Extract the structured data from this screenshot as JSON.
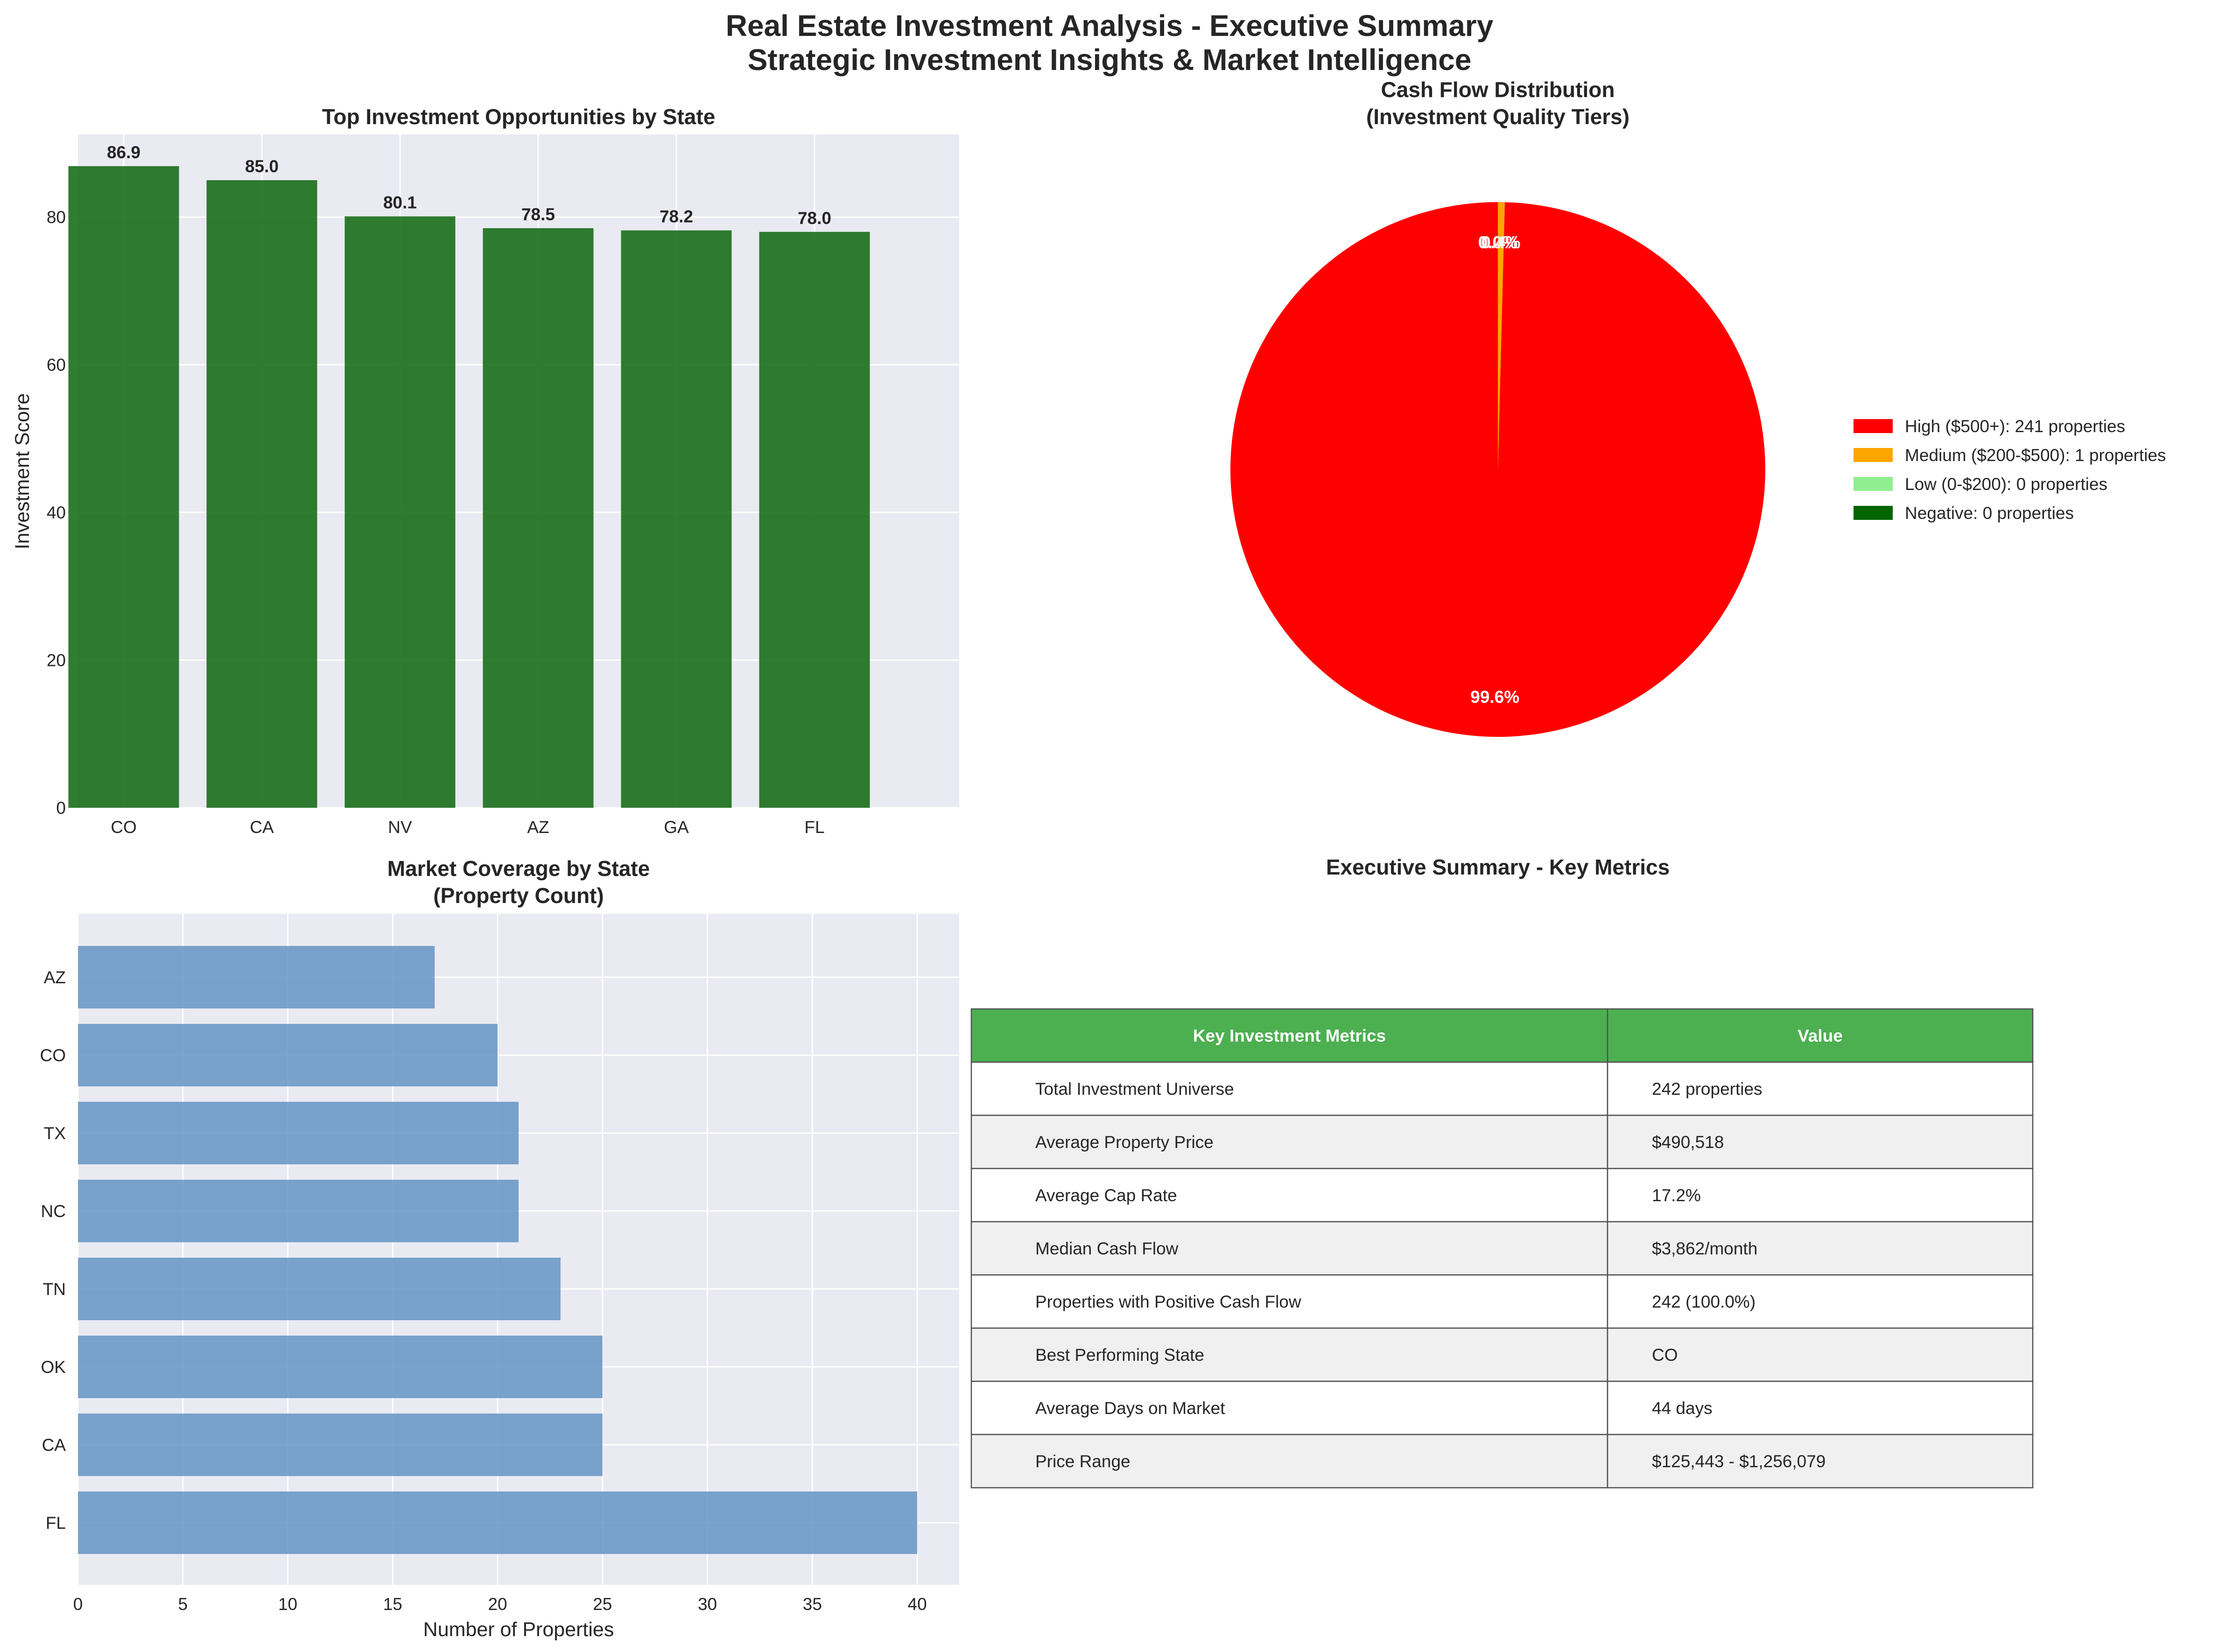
{
  "suptitle_line1": "Real Estate Investment Analysis - Executive Summary",
  "suptitle_line2": "Strategic Investment Insights & Market Intelligence",
  "chart_data": [
    {
      "type": "bar",
      "title": "Top Investment Opportunities by State",
      "xlabel": "",
      "ylabel": "Investment Score",
      "categories": [
        "CO",
        "CA",
        "NV",
        "AZ",
        "GA",
        "FL"
      ],
      "values": [
        86.9,
        85.0,
        80.1,
        78.5,
        78.2,
        78.0
      ],
      "value_labels": [
        "86.9",
        "85.0",
        "80.1",
        "78.5",
        "78.2",
        "78.0"
      ],
      "ylim": [
        0,
        91.2
      ],
      "yticks": [
        0,
        20,
        40,
        60,
        80
      ],
      "color": "#1a6e1a",
      "grid": true
    },
    {
      "type": "pie",
      "title_line1": "Cash Flow Distribution",
      "title_line2": "(Investment Quality Tiers)",
      "slices": [
        {
          "label": "High ($500+): 241 properties",
          "value": 241,
          "pct_label": "99.6%",
          "color": "#ff0000"
        },
        {
          "label": "Medium ($200-$500): 1 properties",
          "value": 1,
          "pct_label": "0.4%",
          "color": "#ffa500"
        },
        {
          "label": "Low (0-$200): 0 properties",
          "value": 0,
          "pct_label": "0.0%",
          "color": "#90ee90"
        },
        {
          "label": "Negative: 0 properties",
          "value": 0,
          "pct_label": "0.0%",
          "color": "#006400"
        }
      ],
      "legend": "right"
    },
    {
      "type": "bar",
      "orientation": "horizontal",
      "title_line1": "Market Coverage by State",
      "title_line2": "(Property Count)",
      "xlabel": "Number of Properties",
      "ylabel": "",
      "categories": [
        "FL",
        "CA",
        "OK",
        "TN",
        "NC",
        "TX",
        "CO",
        "AZ"
      ],
      "values": [
        40,
        25,
        25,
        23,
        21,
        21,
        20,
        17
      ],
      "xlim": [
        0,
        42
      ],
      "xticks": [
        0,
        5,
        10,
        15,
        20,
        25,
        30,
        35,
        40
      ],
      "color": "#5b8fc0",
      "grid": true
    },
    {
      "type": "table",
      "title": "Executive Summary - Key Metrics",
      "header": [
        "Key Investment Metrics",
        "Value"
      ],
      "header_color": "#4caf50",
      "rows": [
        [
          "Total Investment Universe",
          "242 properties"
        ],
        [
          "Average Property Price",
          "$490,518"
        ],
        [
          "Average Cap Rate",
          "17.2%"
        ],
        [
          "Median Cash Flow",
          "$3,862/month"
        ],
        [
          "Properties with Positive Cash Flow",
          "242 (100.0%)"
        ],
        [
          "Best Performing State",
          "CO"
        ],
        [
          "Average Days on Market",
          "44 days"
        ],
        [
          "Price Range",
          "$125,443 - $1,256,079"
        ]
      ]
    }
  ]
}
